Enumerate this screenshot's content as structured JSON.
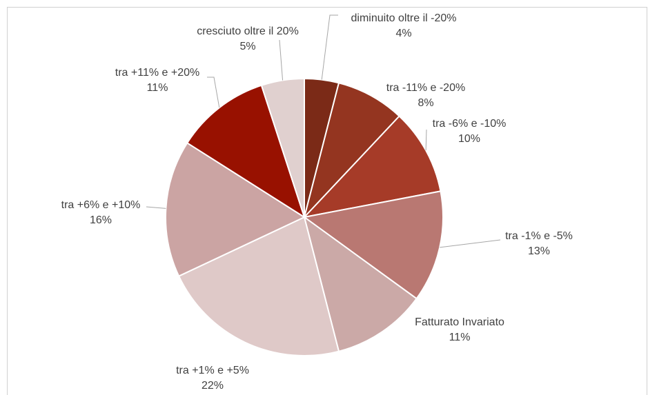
{
  "chart_data": {
    "type": "pie",
    "categories": [
      "diminuito oltre il -20%",
      "tra -11% e -20%",
      "tra -6% e -10%",
      "tra -1% e -5%",
      "Fatturato Invariato",
      "tra +1% e +5%",
      "tra +6% e +10%",
      "tra +11% e +20%",
      "cresciuto oltre il 20%"
    ],
    "values": [
      4,
      8,
      10,
      13,
      11,
      22,
      16,
      11,
      5
    ],
    "value_labels": [
      "4%",
      "8%",
      "10%",
      "13%",
      "11%",
      "22%",
      "16%",
      "11%",
      "5%"
    ],
    "colors": [
      "#7b2a17",
      "#943520",
      "#a63b28",
      "#b97872",
      "#cba9a7",
      "#dfc9c8",
      "#cba4a3",
      "#981100",
      "#e0d0cf"
    ]
  }
}
